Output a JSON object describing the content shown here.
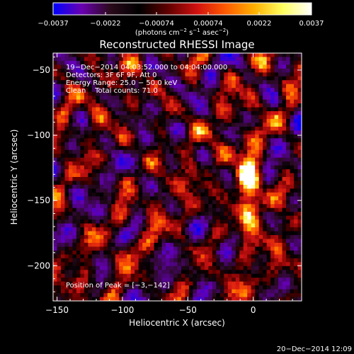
{
  "chart_data": {
    "type": "heatmap",
    "title": "Reconstructed RHESSI Image",
    "xlabel": "Heliocentric X (arcsec)",
    "ylabel": "Heliocentric Y (arcsec)",
    "xlim": [
      -153,
      37
    ],
    "ylim": [
      -227,
      -37
    ],
    "x_ticks": [
      {
        "value": -150,
        "label": "−150"
      },
      {
        "value": -100,
        "label": "−100"
      },
      {
        "value": -50,
        "label": "−50"
      },
      {
        "value": 0,
        "label": "0"
      }
    ],
    "y_ticks": [
      {
        "value": -50,
        "label": "−50"
      },
      {
        "value": -100,
        "label": "−100"
      },
      {
        "value": -150,
        "label": "−150"
      },
      {
        "value": -200,
        "label": "−200"
      }
    ],
    "colorbar": {
      "range": [
        -0.0037,
        0.0037
      ],
      "ticks": [
        {
          "value": -0.0037,
          "label": "−0.0037"
        },
        {
          "value": -0.0022,
          "label": "−0.0022"
        },
        {
          "value": -0.00074,
          "label": "−0.00074"
        },
        {
          "value": 0.00074,
          "label": "0.00074"
        },
        {
          "value": 0.0022,
          "label": "0.0022"
        },
        {
          "value": 0.0037,
          "label": "0.0037"
        }
      ],
      "units_text": "(photons cm",
      "units_exp1": "−2",
      "units_mid": " s",
      "units_exp2": "−1",
      "units_mid2": " asec",
      "units_exp3": "−2",
      "units_close": ")",
      "colors": [
        "#0000ff",
        "#6a00b0",
        "#2a0a1a",
        "#000000",
        "#600000",
        "#d01010",
        "#ff5a00",
        "#ffb000",
        "#ffff60",
        "#ffffff"
      ]
    },
    "annotations": [
      "19−Dec−2014 04:03:52.000 to 04:04:00.000",
      "Detectors: 3F 6F 9F, Att 0",
      "Energy Range: 25.0 − 50.0 keV",
      "Clean    Total counts: 71.0"
    ],
    "peak_label": "Position of Peak = [−3,−142]",
    "peak": [
      -3,
      -142
    ],
    "timestamp": "20−Dec−2014 12:09"
  }
}
